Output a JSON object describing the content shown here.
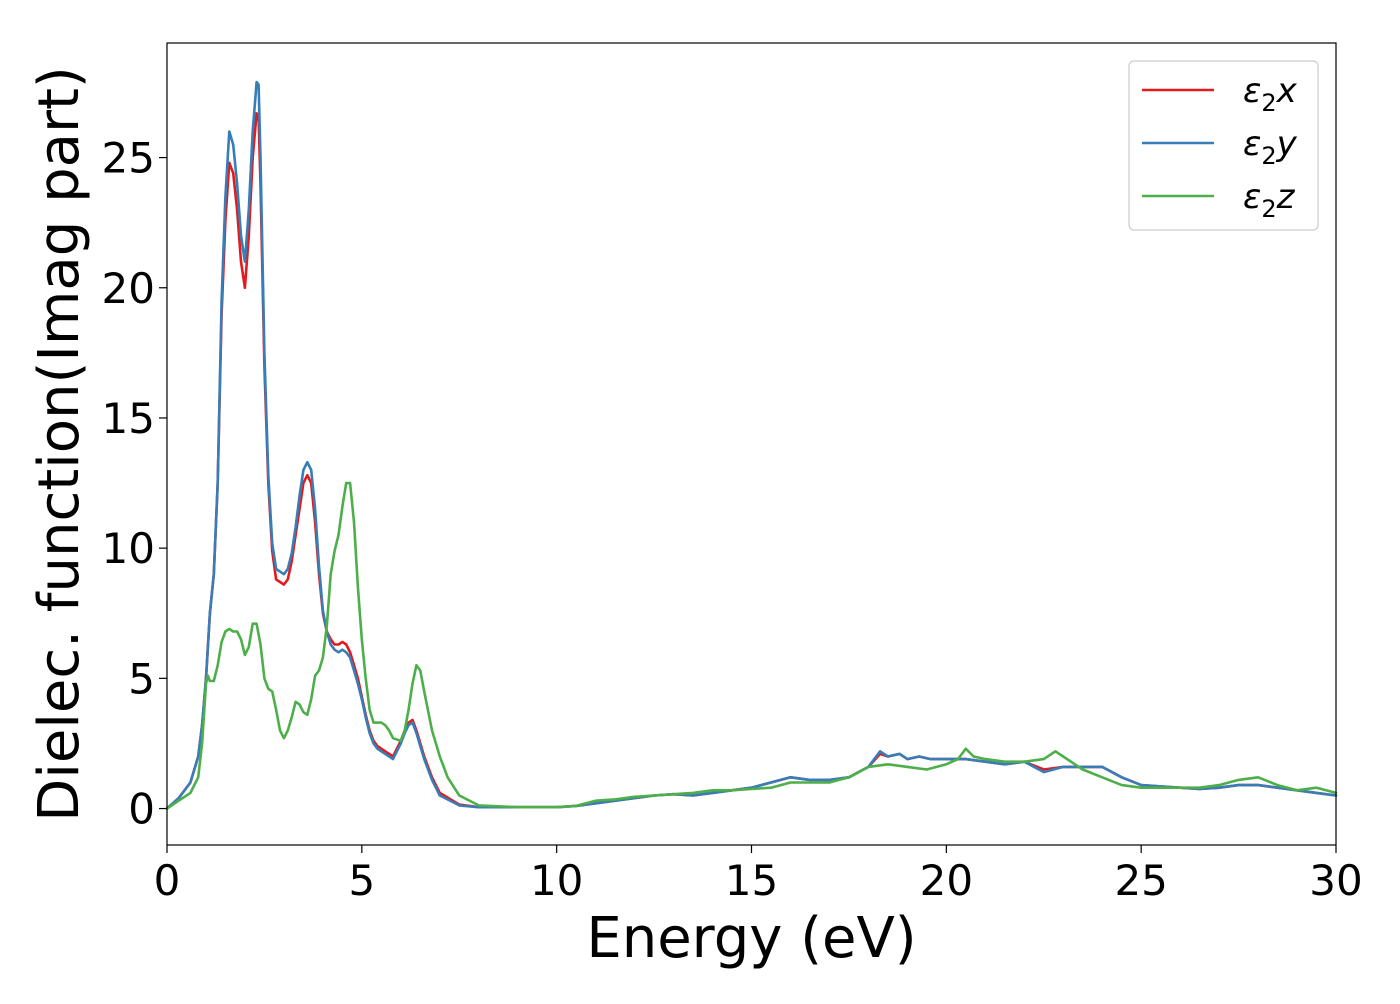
{
  "chart_data": {
    "type": "line",
    "title": "",
    "xlabel": "Energy (eV)",
    "ylabel": "Dielec. function(Imag part)",
    "xlim": [
      0,
      30
    ],
    "ylim": [
      -1.4,
      29.4
    ],
    "xticks": [
      0,
      5,
      10,
      15,
      20,
      25,
      30
    ],
    "xtick_labels": [
      "0",
      "5",
      "10",
      "15",
      "20",
      "25",
      "30"
    ],
    "yticks": [
      0,
      5,
      10,
      15,
      20,
      25
    ],
    "ytick_labels": [
      "0",
      "5",
      "10",
      "15",
      "20",
      "25"
    ],
    "grid": false,
    "legend_position": "top-right",
    "series": [
      {
        "name": "ε2x",
        "label_base": "ε",
        "label_sub": "2",
        "label_suffix": "x",
        "color": "#e41a1c",
        "x": [
          0,
          0.3,
          0.6,
          0.8,
          0.9,
          1.0,
          1.1,
          1.2,
          1.3,
          1.4,
          1.5,
          1.6,
          1.7,
          1.8,
          1.9,
          2.0,
          2.1,
          2.2,
          2.3,
          2.35,
          2.4,
          2.5,
          2.6,
          2.7,
          2.8,
          2.9,
          3.0,
          3.1,
          3.2,
          3.3,
          3.4,
          3.5,
          3.6,
          3.7,
          3.8,
          3.9,
          4.0,
          4.1,
          4.2,
          4.3,
          4.4,
          4.5,
          4.6,
          4.7,
          4.8,
          4.9,
          5.0,
          5.1,
          5.2,
          5.3,
          5.4,
          5.6,
          5.8,
          6.0,
          6.1,
          6.2,
          6.3,
          6.4,
          6.5,
          6.6,
          6.8,
          7.0,
          7.5,
          8.0,
          9.0,
          10.0,
          10.5,
          11.0,
          11.5,
          12.0,
          12.5,
          13.0,
          13.5,
          14.0,
          14.5,
          15.0,
          15.5,
          16.0,
          16.5,
          17.0,
          17.5,
          18.0,
          18.3,
          18.5,
          18.8,
          19.0,
          19.3,
          19.6,
          20.0,
          20.5,
          21.0,
          21.5,
          22.0,
          22.5,
          23.0,
          23.5,
          24.0,
          24.5,
          25.0,
          25.5,
          26.0,
          26.5,
          27.0,
          27.5,
          28.0,
          28.5,
          29.0,
          29.5,
          30.0
        ],
        "y": [
          0,
          0.4,
          1.0,
          2.0,
          3.2,
          5.0,
          7.5,
          9.0,
          12.5,
          19.0,
          22.6,
          24.8,
          24.4,
          23.0,
          21.0,
          20.0,
          22.0,
          25.0,
          26.7,
          26.5,
          24.0,
          17.0,
          12.5,
          9.9,
          8.8,
          8.7,
          8.6,
          8.8,
          9.5,
          10.5,
          11.5,
          12.5,
          12.8,
          12.5,
          11.0,
          9.0,
          7.5,
          6.8,
          6.5,
          6.3,
          6.3,
          6.4,
          6.3,
          6.0,
          5.5,
          5.0,
          4.3,
          3.6,
          3.0,
          2.6,
          2.4,
          2.2,
          2.0,
          2.6,
          3.0,
          3.3,
          3.4,
          3.0,
          2.5,
          2.0,
          1.2,
          0.6,
          0.15,
          0.05,
          0.05,
          0.05,
          0.1,
          0.2,
          0.3,
          0.4,
          0.5,
          0.55,
          0.5,
          0.6,
          0.7,
          0.8,
          1.0,
          1.2,
          1.1,
          1.1,
          1.2,
          1.6,
          2.1,
          2.0,
          2.1,
          1.9,
          2.0,
          1.9,
          1.9,
          1.9,
          1.8,
          1.7,
          1.8,
          1.5,
          1.6,
          1.6,
          1.6,
          1.2,
          0.9,
          0.85,
          0.8,
          0.75,
          0.8,
          0.9,
          0.9,
          0.8,
          0.7,
          0.6,
          0.5
        ]
      },
      {
        "name": "ε2y",
        "label_base": "ε",
        "label_sub": "2",
        "label_suffix": "y",
        "color": "#377eb8",
        "x": [
          0,
          0.3,
          0.6,
          0.8,
          0.9,
          1.0,
          1.1,
          1.2,
          1.3,
          1.4,
          1.5,
          1.6,
          1.7,
          1.8,
          1.9,
          2.0,
          2.1,
          2.2,
          2.3,
          2.35,
          2.4,
          2.5,
          2.6,
          2.7,
          2.8,
          2.9,
          3.0,
          3.1,
          3.2,
          3.3,
          3.4,
          3.5,
          3.6,
          3.7,
          3.8,
          3.9,
          4.0,
          4.1,
          4.2,
          4.3,
          4.4,
          4.5,
          4.6,
          4.7,
          4.8,
          4.9,
          5.0,
          5.1,
          5.2,
          5.3,
          5.4,
          5.6,
          5.8,
          6.0,
          6.1,
          6.2,
          6.3,
          6.4,
          6.5,
          6.6,
          6.8,
          7.0,
          7.5,
          8.0,
          9.0,
          10.0,
          10.5,
          11.0,
          11.5,
          12.0,
          12.5,
          13.0,
          13.5,
          14.0,
          14.5,
          15.0,
          15.5,
          16.0,
          16.5,
          17.0,
          17.5,
          18.0,
          18.3,
          18.5,
          18.8,
          19.0,
          19.3,
          19.6,
          20.0,
          20.5,
          21.0,
          21.5,
          22.0,
          22.5,
          23.0,
          23.5,
          24.0,
          24.5,
          25.0,
          25.5,
          26.0,
          26.5,
          27.0,
          27.5,
          28.0,
          28.5,
          29.0,
          29.5,
          30.0
        ],
        "y": [
          0,
          0.4,
          1.0,
          2.0,
          3.2,
          5.0,
          7.5,
          9.0,
          12.5,
          19.5,
          23.5,
          26.0,
          25.5,
          24.0,
          22.0,
          21.0,
          23.0,
          26.0,
          27.9,
          27.8,
          25.0,
          17.5,
          12.8,
          10.2,
          9.2,
          9.1,
          9.0,
          9.2,
          9.8,
          10.8,
          12.0,
          13.0,
          13.3,
          13.0,
          11.5,
          9.3,
          7.6,
          6.8,
          6.3,
          6.1,
          6.0,
          6.1,
          6.0,
          5.8,
          5.3,
          4.8,
          4.2,
          3.5,
          2.9,
          2.5,
          2.3,
          2.1,
          1.9,
          2.5,
          2.9,
          3.2,
          3.3,
          2.9,
          2.4,
          1.9,
          1.1,
          0.5,
          0.12,
          0.05,
          0.05,
          0.05,
          0.1,
          0.2,
          0.3,
          0.4,
          0.5,
          0.55,
          0.5,
          0.6,
          0.7,
          0.8,
          1.0,
          1.2,
          1.1,
          1.1,
          1.2,
          1.6,
          2.2,
          2.0,
          2.1,
          1.9,
          2.0,
          1.9,
          1.9,
          1.9,
          1.8,
          1.7,
          1.8,
          1.4,
          1.6,
          1.6,
          1.6,
          1.2,
          0.9,
          0.85,
          0.8,
          0.75,
          0.8,
          0.9,
          0.9,
          0.8,
          0.7,
          0.6,
          0.5
        ]
      },
      {
        "name": "ε2z",
        "label_base": "ε",
        "label_sub": "2",
        "label_suffix": "z",
        "color": "#4daf4a",
        "x": [
          0,
          0.3,
          0.6,
          0.8,
          0.9,
          1.0,
          1.05,
          1.1,
          1.2,
          1.3,
          1.4,
          1.5,
          1.6,
          1.7,
          1.8,
          1.9,
          2.0,
          2.1,
          2.2,
          2.3,
          2.4,
          2.5,
          2.6,
          2.7,
          2.8,
          2.9,
          3.0,
          3.1,
          3.2,
          3.3,
          3.4,
          3.5,
          3.6,
          3.7,
          3.8,
          3.9,
          4.0,
          4.1,
          4.2,
          4.3,
          4.4,
          4.5,
          4.6,
          4.7,
          4.8,
          4.9,
          5.0,
          5.1,
          5.2,
          5.3,
          5.4,
          5.5,
          5.6,
          5.7,
          5.8,
          6.0,
          6.1,
          6.2,
          6.3,
          6.4,
          6.5,
          6.6,
          6.8,
          7.0,
          7.2,
          7.5,
          8.0,
          9.0,
          10.0,
          10.5,
          11.0,
          11.5,
          12.0,
          12.5,
          13.0,
          13.5,
          14.0,
          14.5,
          15.0,
          15.5,
          16.0,
          16.5,
          17.0,
          17.5,
          18.0,
          18.5,
          19.0,
          19.5,
          20.0,
          20.3,
          20.5,
          20.7,
          21.0,
          21.5,
          22.0,
          22.5,
          22.8,
          23.0,
          23.5,
          24.0,
          24.5,
          25.0,
          25.5,
          26.0,
          26.5,
          27.0,
          27.5,
          28.0,
          28.5,
          29.0,
          29.5,
          30.0
        ],
        "y": [
          0,
          0.3,
          0.6,
          1.2,
          2.5,
          4.8,
          5.1,
          4.9,
          4.9,
          5.5,
          6.4,
          6.8,
          6.9,
          6.8,
          6.8,
          6.5,
          5.9,
          6.2,
          7.1,
          7.1,
          6.3,
          5.0,
          4.6,
          4.5,
          3.8,
          3.0,
          2.7,
          3.0,
          3.5,
          4.1,
          4.0,
          3.7,
          3.6,
          4.2,
          5.1,
          5.3,
          5.8,
          7.0,
          9.0,
          9.9,
          10.5,
          11.6,
          12.5,
          12.5,
          11.0,
          8.5,
          6.5,
          5.0,
          3.8,
          3.3,
          3.3,
          3.3,
          3.2,
          3.0,
          2.7,
          2.6,
          3.0,
          3.8,
          4.8,
          5.5,
          5.3,
          4.5,
          3.0,
          2.0,
          1.2,
          0.5,
          0.12,
          0.05,
          0.05,
          0.1,
          0.3,
          0.35,
          0.45,
          0.5,
          0.55,
          0.6,
          0.7,
          0.7,
          0.75,
          0.8,
          1.0,
          1.0,
          1.0,
          1.2,
          1.6,
          1.7,
          1.6,
          1.5,
          1.7,
          1.9,
          2.3,
          2.0,
          1.9,
          1.8,
          1.8,
          1.9,
          2.2,
          2.0,
          1.5,
          1.2,
          0.9,
          0.8,
          0.8,
          0.8,
          0.8,
          0.9,
          1.1,
          1.2,
          0.9,
          0.7,
          0.8,
          0.6
        ]
      }
    ]
  }
}
